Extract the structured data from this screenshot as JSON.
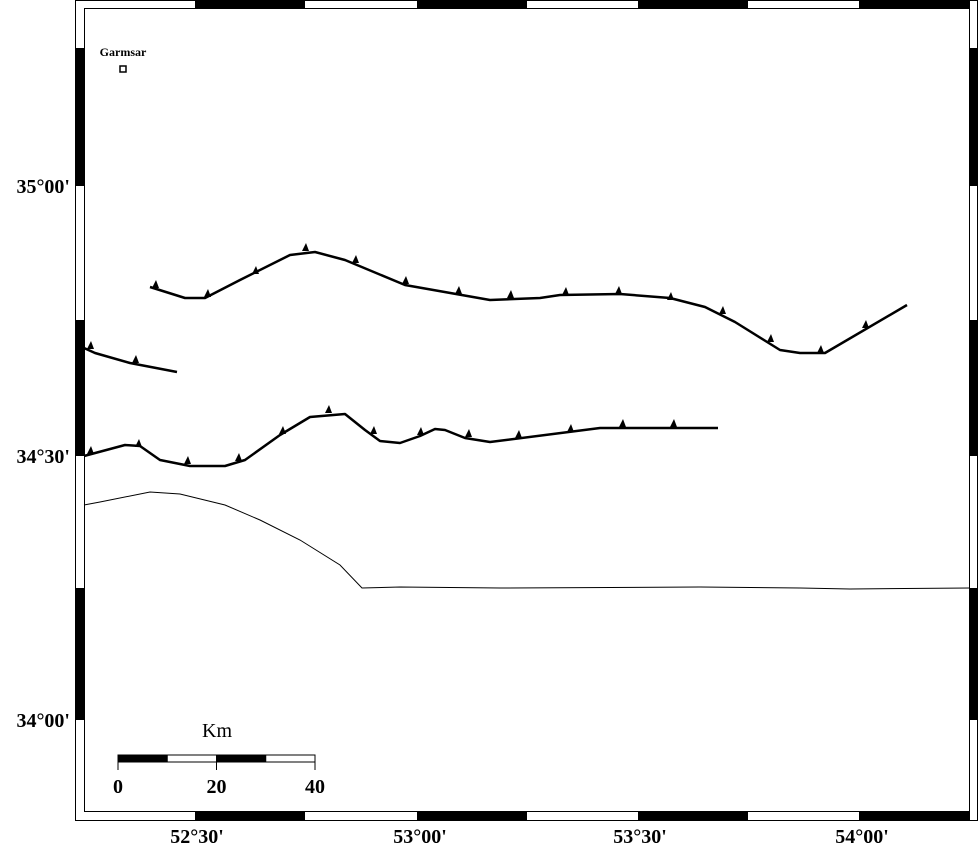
{
  "map": {
    "place_label": "Garmsar",
    "longitude_labels": [
      "52°30'",
      "53°00'",
      "53°30'",
      "54°00'"
    ],
    "latitude_labels": [
      "35°00'",
      "34°30'",
      "34°00'"
    ],
    "scale_bar": {
      "unit": "Km",
      "ticks": [
        0,
        20,
        40
      ]
    }
  }
}
